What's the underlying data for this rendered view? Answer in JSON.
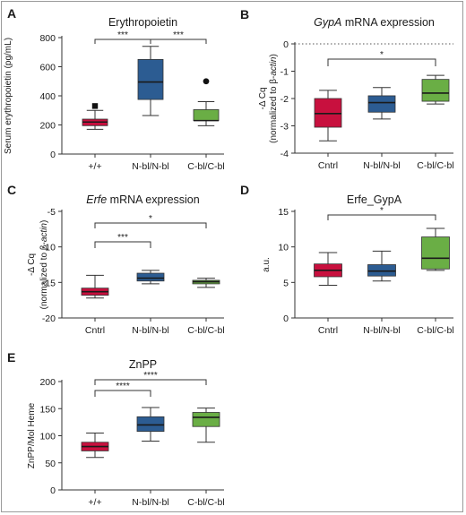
{
  "colors": {
    "red": "#c8103e",
    "blue": "#2c5c92",
    "green": "#6aae45",
    "median": "#1a1a1a",
    "axis": "#333333"
  },
  "chart_data": [
    {
      "panel": "A",
      "type": "box",
      "title": "Erythropoietin",
      "ylabel": "Serum erythropoietin (pg/mL)",
      "ylim": [
        0,
        800
      ],
      "yticks": [
        "0",
        "200",
        "400",
        "600",
        "800"
      ],
      "categories": [
        "+/+",
        "N-bl/N-bl",
        "C-bl/C-bl"
      ],
      "boxes": [
        {
          "color": "red",
          "min": 170,
          "q1": 195,
          "median": 220,
          "q3": 240,
          "max": 300,
          "outliers": [
            {
              "y": 330,
              "marker": "square"
            }
          ]
        },
        {
          "color": "blue",
          "min": 265,
          "q1": 375,
          "median": 495,
          "q3": 650,
          "max": 740,
          "outliers": []
        },
        {
          "color": "green",
          "min": 195,
          "q1": 230,
          "median": 230,
          "q3": 305,
          "max": 360,
          "outliers": [
            {
              "y": 500,
              "marker": "circle"
            }
          ]
        }
      ],
      "significance": [
        {
          "from": 0,
          "to": 1,
          "label": "***"
        },
        {
          "from": 1,
          "to": 2,
          "label": "***"
        }
      ]
    },
    {
      "panel": "B",
      "type": "box",
      "title_italic": "GypA",
      "title_rest": " mRNA expression",
      "ylabel": "-Δ Cq",
      "ylabel2": "(normalized to β-actin)",
      "ylim": [
        -4,
        0
      ],
      "yticks": [
        "0",
        "-1",
        "-2",
        "-3",
        "-4"
      ],
      "zero_line": true,
      "categories": [
        "Cntrl",
        "N-bl/N-bl",
        "C-bl/C-bl"
      ],
      "boxes": [
        {
          "color": "red",
          "min": -3.55,
          "q1": -3.05,
          "median": -2.55,
          "q3": -2.0,
          "max": -1.7,
          "outliers": []
        },
        {
          "color": "blue",
          "min": -2.75,
          "q1": -2.5,
          "median": -2.15,
          "q3": -1.9,
          "max": -1.6,
          "outliers": []
        },
        {
          "color": "green",
          "min": -2.2,
          "q1": -2.1,
          "median": -1.8,
          "q3": -1.3,
          "max": -1.15,
          "outliers": []
        }
      ],
      "significance": [
        {
          "from": 0,
          "to": 2,
          "label": "*"
        }
      ]
    },
    {
      "panel": "C",
      "type": "box",
      "title_italic": "Erfe",
      "title_rest": " mRNA expression",
      "ylabel": "-Δ Cq",
      "ylabel2": "(normalized to β-actin)",
      "ylim": [
        -20,
        -5
      ],
      "yticks": [
        "-5",
        "-10",
        "-15",
        "-20"
      ],
      "categories": [
        "Cntrl",
        "N-bl/N-bl",
        "C-bl/C-bl"
      ],
      "boxes": [
        {
          "color": "red",
          "min": -17.2,
          "q1": -16.8,
          "median": -16.3,
          "q3": -15.8,
          "max": -14.0,
          "outliers": []
        },
        {
          "color": "blue",
          "min": -15.2,
          "q1": -14.8,
          "median": -14.4,
          "q3": -13.7,
          "max": -13.3,
          "outliers": []
        },
        {
          "color": "green",
          "min": -15.7,
          "q1": -15.2,
          "median": -14.9,
          "q3": -14.7,
          "max": -14.4,
          "outliers": []
        }
      ],
      "significance": [
        {
          "from": 0,
          "to": 1,
          "label": "***"
        },
        {
          "from": 0,
          "to": 2,
          "label": "*"
        }
      ]
    },
    {
      "panel": "D",
      "type": "box",
      "title": "Erfe_GypA",
      "ylabel": "a.u.",
      "ylim": [
        0,
        15
      ],
      "yticks": [
        "0",
        "5",
        "10",
        "15"
      ],
      "categories": [
        "Cntrl",
        "N-bl/N-bl",
        "C-bl/C-bl"
      ],
      "boxes": [
        {
          "color": "red",
          "min": 4.6,
          "q1": 5.8,
          "median": 6.7,
          "q3": 7.6,
          "max": 9.2,
          "outliers": []
        },
        {
          "color": "blue",
          "min": 5.2,
          "q1": 5.9,
          "median": 6.6,
          "q3": 7.5,
          "max": 9.4,
          "outliers": []
        },
        {
          "color": "green",
          "min": 6.7,
          "q1": 6.9,
          "median": 8.4,
          "q3": 11.4,
          "max": 12.6,
          "outliers": []
        }
      ],
      "significance": [
        {
          "from": 0,
          "to": 2,
          "label": "*"
        }
      ]
    },
    {
      "panel": "E",
      "type": "box",
      "title": "ZnPP",
      "ylabel": "ZnPP/Mol Heme",
      "ylim": [
        0,
        200
      ],
      "yticks": [
        "0",
        "50",
        "100",
        "150",
        "200"
      ],
      "categories": [
        "+/+",
        "N-bl/N-bl",
        "C-bl/C-bl"
      ],
      "boxes": [
        {
          "color": "red",
          "min": 60,
          "q1": 72,
          "median": 80,
          "q3": 88,
          "max": 105,
          "outliers": []
        },
        {
          "color": "blue",
          "min": 90,
          "q1": 108,
          "median": 120,
          "q3": 135,
          "max": 152,
          "outliers": []
        },
        {
          "color": "green",
          "min": 88,
          "q1": 117,
          "median": 134,
          "q3": 143,
          "max": 151,
          "outliers": []
        }
      ],
      "significance": [
        {
          "from": 0,
          "to": 1,
          "label": "****"
        },
        {
          "from": 0,
          "to": 2,
          "label": "****"
        }
      ]
    }
  ]
}
